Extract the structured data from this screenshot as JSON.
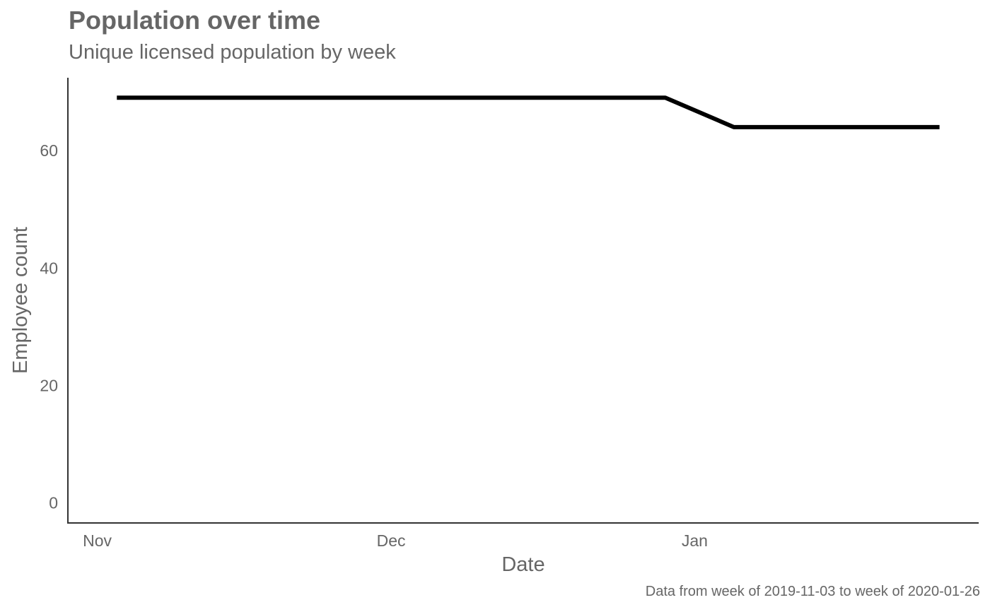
{
  "chart_data": {
    "type": "line",
    "title": "Population over time",
    "subtitle": "Unique licensed population by week",
    "caption": "Data from week of 2019-11-03 to week of 2020-01-26",
    "xlabel": "Date",
    "ylabel": "Employee count",
    "x_axis_type": "date",
    "x_ticks": [
      {
        "date": "2019-11-01",
        "label": "Nov"
      },
      {
        "date": "2019-12-01",
        "label": "Dec"
      },
      {
        "date": "2020-01-01",
        "label": "Jan"
      }
    ],
    "y_ticks": [
      0,
      20,
      40,
      60
    ],
    "xlim": [
      "2019-10-29",
      "2020-01-30"
    ],
    "ylim": [
      -3.4,
      72.4
    ],
    "grid": false,
    "legend": "none",
    "series": [
      {
        "color": "#000000",
        "points": [
          {
            "x": "2019-11-03",
            "y": 69
          },
          {
            "x": "2019-11-10",
            "y": 69
          },
          {
            "x": "2019-11-17",
            "y": 69
          },
          {
            "x": "2019-11-24",
            "y": 69
          },
          {
            "x": "2019-12-01",
            "y": 69
          },
          {
            "x": "2019-12-08",
            "y": 69
          },
          {
            "x": "2019-12-15",
            "y": 69
          },
          {
            "x": "2019-12-22",
            "y": 69
          },
          {
            "x": "2019-12-29",
            "y": 69
          },
          {
            "x": "2020-01-05",
            "y": 64
          },
          {
            "x": "2020-01-12",
            "y": 64
          },
          {
            "x": "2020-01-19",
            "y": 64
          },
          {
            "x": "2020-01-26",
            "y": 64
          }
        ]
      }
    ]
  }
}
